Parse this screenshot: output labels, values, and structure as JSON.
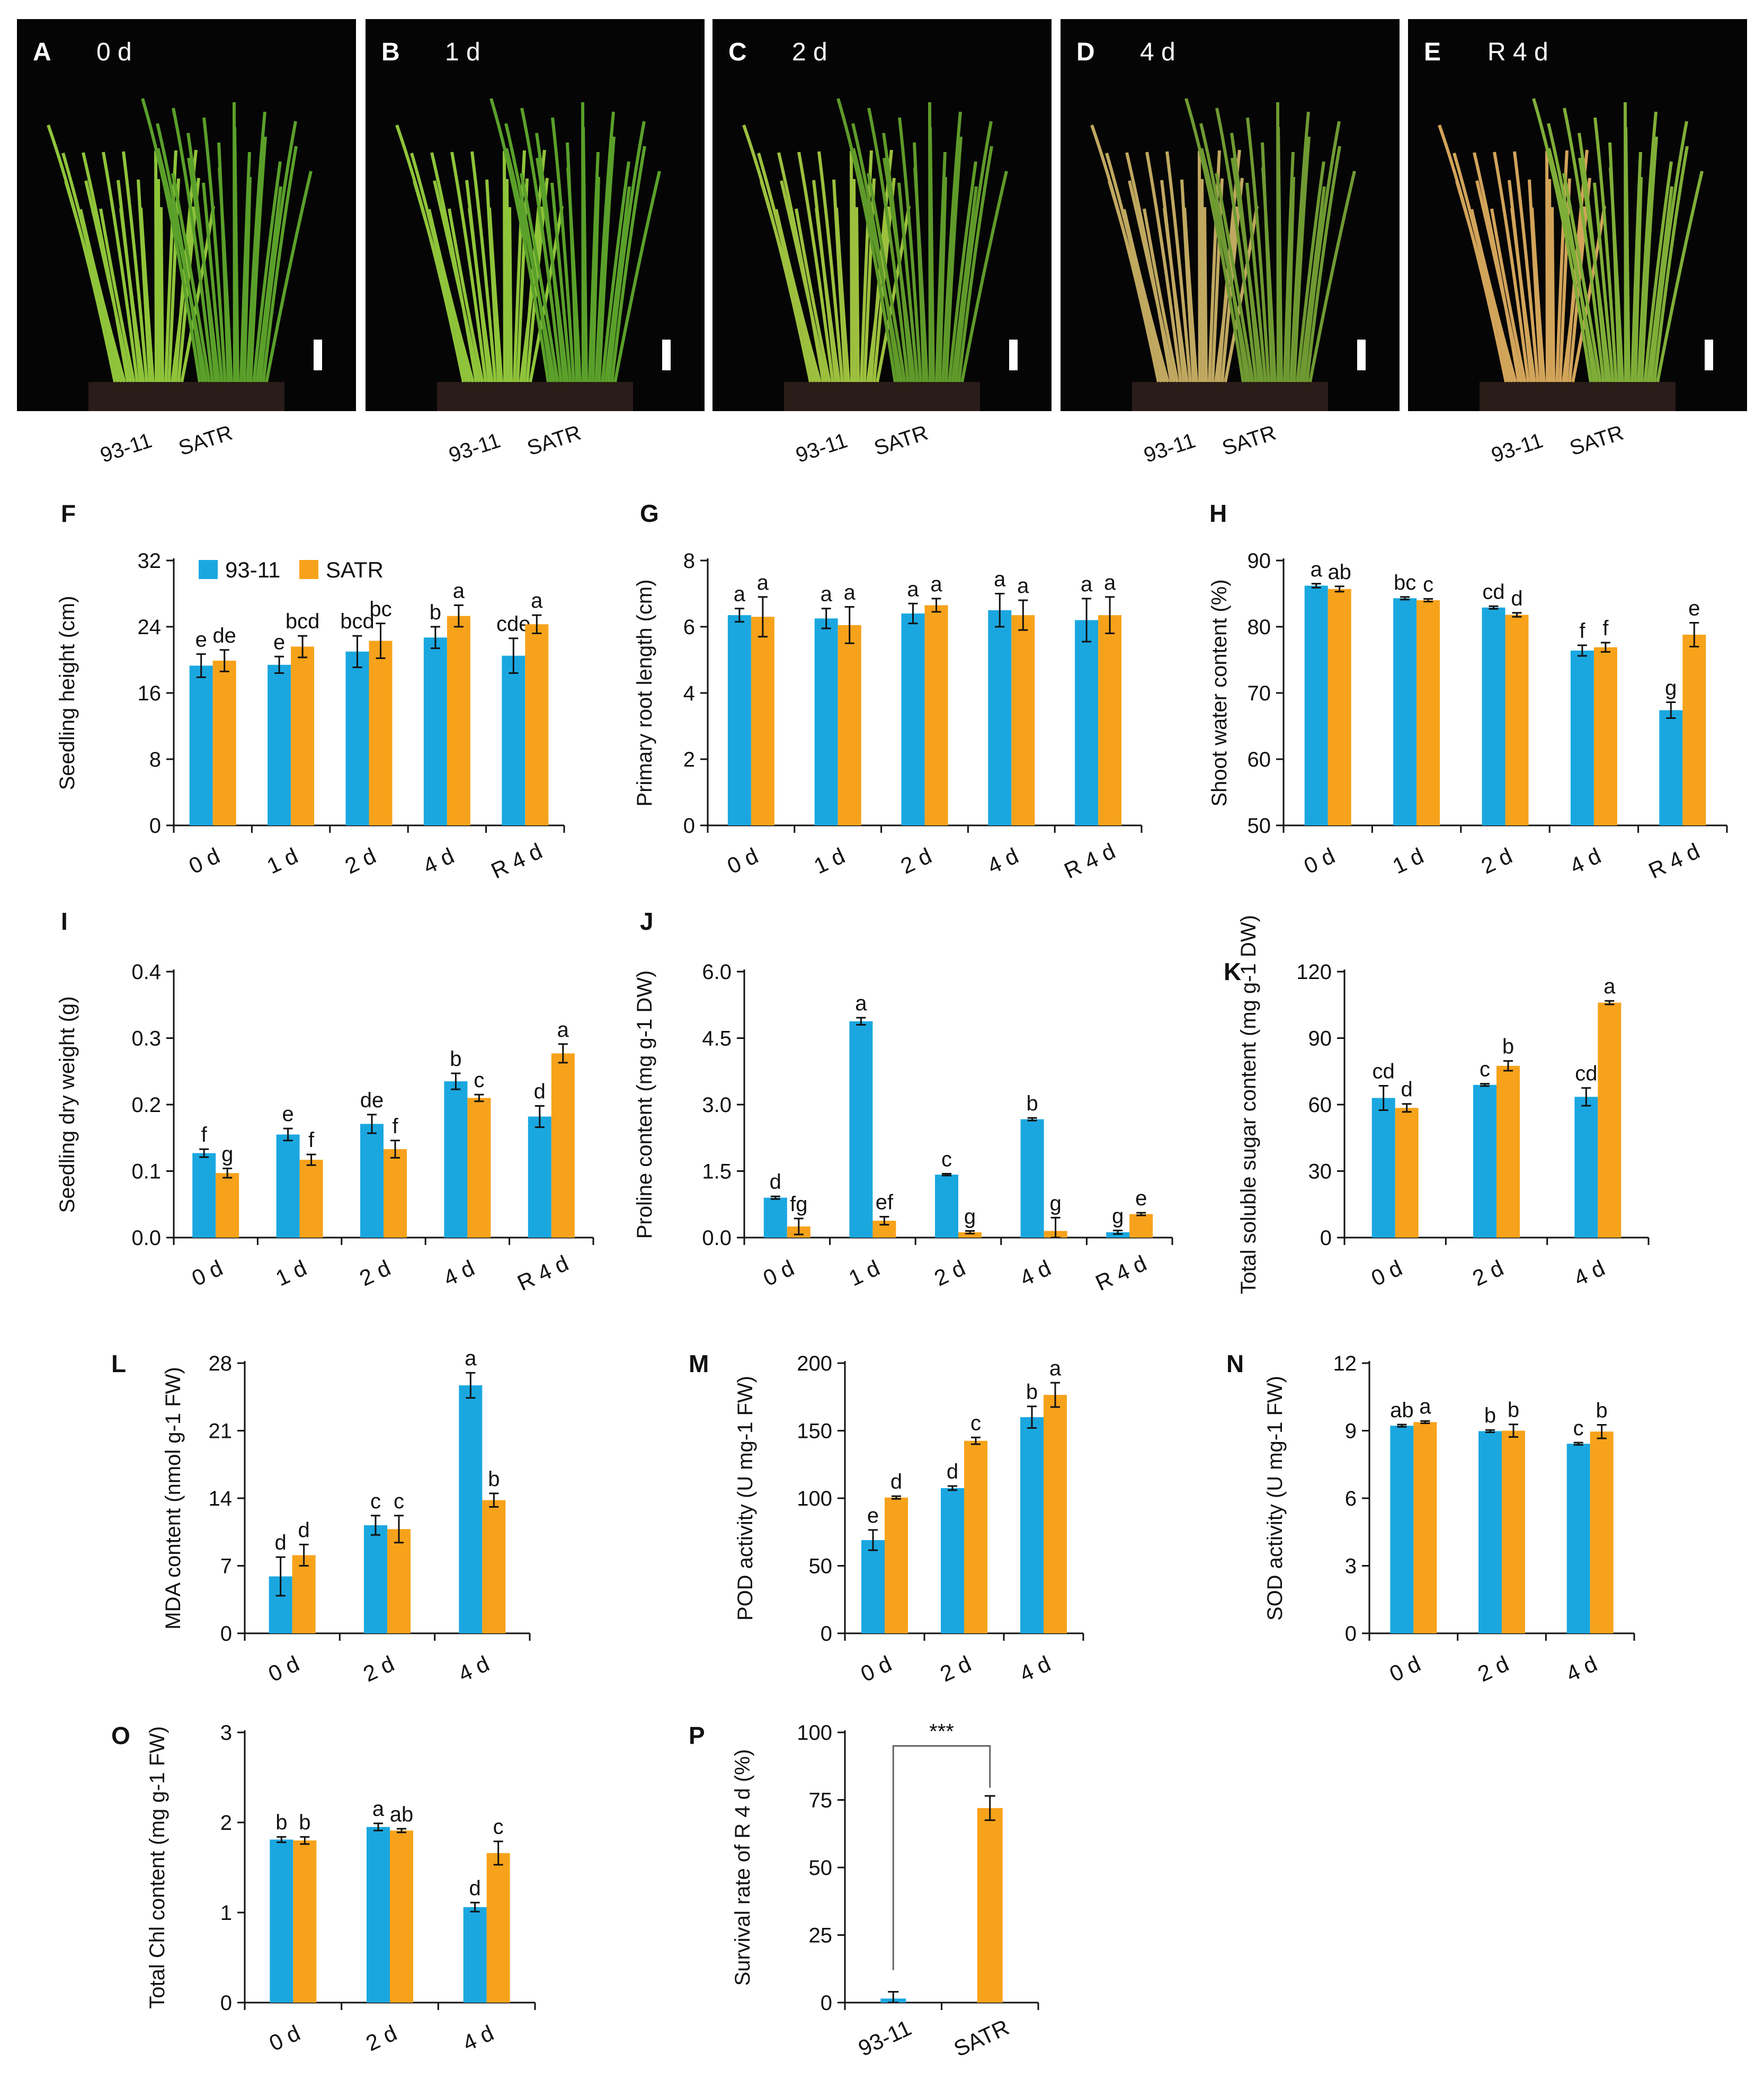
{
  "colors": {
    "c1": "#1AA7E0",
    "c2": "#F7A21B",
    "axis": "#111111",
    "photo_bg": "#050505"
  },
  "legend": [
    "93-11",
    "SATR"
  ],
  "photos": [
    {
      "label": "A",
      "time": "0 d",
      "left": "93-11",
      "right": "SATR",
      "stage": "healthy"
    },
    {
      "label": "B",
      "time": "1 d",
      "left": "93-11",
      "right": "SATR",
      "stage": "healthy"
    },
    {
      "label": "C",
      "time": "2 d",
      "left": "93-11",
      "right": "SATR",
      "stage": "mild"
    },
    {
      "label": "D",
      "time": "4 d",
      "left": "93-11",
      "right": "SATR",
      "stage": "wilting"
    },
    {
      "label": "E",
      "time": "R 4 d",
      "left": "93-11",
      "right": "SATR",
      "stage": "dead"
    }
  ],
  "chart_data": [
    {
      "id": "F",
      "label": "F",
      "type": "bar",
      "ylabel": "Seedling height (cm)",
      "ylim": [
        0,
        32
      ],
      "yticks": [
        "0",
        "8",
        "16",
        "24",
        "32"
      ],
      "legend": true,
      "categories": [
        "0 d",
        "1 d",
        "2 d",
        "4 d",
        "R 4 d"
      ],
      "series": [
        {
          "name": "93-11",
          "values": [
            19.3,
            19.4,
            21.0,
            22.7,
            20.5
          ],
          "errors": [
            1.4,
            1.0,
            1.9,
            1.3,
            2.1
          ],
          "letters": [
            "e",
            "e",
            "bcd",
            "b",
            "cde"
          ]
        },
        {
          "name": "SATR",
          "values": [
            19.9,
            21.6,
            22.3,
            25.3,
            24.3
          ],
          "errors": [
            1.3,
            1.3,
            2.1,
            1.3,
            1.1
          ],
          "letters": [
            "de",
            "bcd",
            "bc",
            "a",
            "a"
          ]
        }
      ]
    },
    {
      "id": "G",
      "label": "G",
      "type": "bar",
      "ylabel": "Primary root length (cm)",
      "ylim": [
        0,
        8
      ],
      "yticks": [
        "0",
        "2",
        "4",
        "6",
        "8"
      ],
      "categories": [
        "0 d",
        "1 d",
        "2 d",
        "4 d",
        "R 4 d"
      ],
      "series": [
        {
          "name": "93-11",
          "values": [
            6.35,
            6.25,
            6.4,
            6.5,
            6.2
          ],
          "errors": [
            0.2,
            0.3,
            0.3,
            0.5,
            0.65
          ],
          "letters": [
            "a",
            "a",
            "a",
            "a",
            "a"
          ]
        },
        {
          "name": "SATR",
          "values": [
            6.3,
            6.05,
            6.65,
            6.35,
            6.35
          ],
          "errors": [
            0.6,
            0.55,
            0.2,
            0.45,
            0.55
          ],
          "letters": [
            "a",
            "a",
            "a",
            "a",
            "a"
          ]
        }
      ]
    },
    {
      "id": "H",
      "label": "H",
      "type": "bar",
      "ylabel": "Shoot water content (%)",
      "ylim": [
        50,
        90
      ],
      "yticks": [
        "50",
        "60",
        "70",
        "80",
        "90"
      ],
      "categories": [
        "0 d",
        "1 d",
        "2 d",
        "4 d",
        "R 4 d"
      ],
      "series": [
        {
          "name": "93-11",
          "values": [
            86.2,
            84.3,
            82.9,
            76.4,
            67.4
          ],
          "errors": [
            0.3,
            0.2,
            0.2,
            0.8,
            1.2
          ],
          "letters": [
            "a",
            "bc",
            "cd",
            "f",
            "g"
          ]
        },
        {
          "name": "SATR",
          "values": [
            85.7,
            84.0,
            81.8,
            76.9,
            78.8
          ],
          "errors": [
            0.4,
            0.2,
            0.3,
            0.7,
            1.8
          ],
          "letters": [
            "ab",
            "c",
            "d",
            "f",
            "e"
          ]
        }
      ]
    },
    {
      "id": "I",
      "label": "I",
      "type": "bar",
      "ylabel": "Seedling dry weight (g)",
      "ylim": [
        0,
        0.4
      ],
      "yticks": [
        "0.0",
        "0.1",
        "0.2",
        "0.3",
        "0.4"
      ],
      "categories": [
        "0 d",
        "1 d",
        "2 d",
        "4 d",
        "R 4 d"
      ],
      "series": [
        {
          "name": "93-11",
          "values": [
            0.127,
            0.155,
            0.171,
            0.235,
            0.182
          ],
          "errors": [
            0.006,
            0.009,
            0.014,
            0.012,
            0.016
          ],
          "letters": [
            "f",
            "e",
            "de",
            "b",
            "d"
          ]
        },
        {
          "name": "SATR",
          "values": [
            0.097,
            0.117,
            0.133,
            0.21,
            0.277
          ],
          "errors": [
            0.007,
            0.008,
            0.013,
            0.005,
            0.014
          ],
          "letters": [
            "g",
            "f",
            "f",
            "c",
            "a"
          ]
        }
      ]
    },
    {
      "id": "J",
      "label": "J",
      "type": "bar",
      "ylabel": "Proline content (mg g-1 DW)",
      "ylim": [
        0,
        6
      ],
      "yticks": [
        "0.0",
        "1.5",
        "3.0",
        "4.5",
        "6.0"
      ],
      "categories": [
        "0 d",
        "1 d",
        "2 d",
        "4 d",
        "R 4 d"
      ],
      "series": [
        {
          "name": "93-11",
          "values": [
            0.9,
            4.88,
            1.42,
            2.67,
            0.12
          ],
          "errors": [
            0.03,
            0.08,
            0.02,
            0.03,
            0.04
          ],
          "letters": [
            "d",
            "a",
            "c",
            "b",
            "g"
          ]
        },
        {
          "name": "SATR",
          "values": [
            0.25,
            0.38,
            0.12,
            0.15,
            0.53
          ],
          "errors": [
            0.18,
            0.09,
            0.03,
            0.3,
            0.03
          ],
          "letters": [
            "fg",
            "ef",
            "g",
            "g",
            "e"
          ]
        }
      ]
    },
    {
      "id": "K",
      "label": "K",
      "type": "bar",
      "ylabel": "Total soluble sugar content (mg g-1 DW)",
      "ylim": [
        0,
        120
      ],
      "yticks": [
        "0",
        "30",
        "60",
        "90",
        "120"
      ],
      "categories": [
        "0 d",
        "2 d",
        "4 d"
      ],
      "series": [
        {
          "name": "93-11",
          "values": [
            63.0,
            68.9,
            63.5
          ],
          "errors": [
            5.5,
            0.5,
            4.0
          ],
          "letters": [
            "cd",
            "c",
            "cd"
          ]
        },
        {
          "name": "SATR",
          "values": [
            58.5,
            77.5,
            106.0
          ],
          "errors": [
            1.8,
            2.2,
            0.8
          ],
          "letters": [
            "d",
            "b",
            "a"
          ]
        }
      ]
    },
    {
      "id": "L",
      "label": "L",
      "type": "bar",
      "ylabel": "MDA content (nmol g-1 FW)",
      "ylim": [
        0,
        28
      ],
      "yticks": [
        "0",
        "7",
        "14",
        "21",
        "28"
      ],
      "categories": [
        "0 d",
        "2 d",
        "4 d"
      ],
      "series": [
        {
          "name": "93-11",
          "values": [
            5.9,
            11.2,
            25.7
          ],
          "errors": [
            2.0,
            1.0,
            1.3
          ],
          "letters": [
            "d",
            "c",
            "a"
          ]
        },
        {
          "name": "SATR",
          "values": [
            8.1,
            10.8,
            13.8
          ],
          "errors": [
            1.1,
            1.4,
            0.7
          ],
          "letters": [
            "d",
            "c",
            "b"
          ]
        }
      ]
    },
    {
      "id": "M",
      "label": "M",
      "type": "bar",
      "ylabel": "POD activity (U mg-1 FW)",
      "ylim": [
        0,
        200
      ],
      "yticks": [
        "0",
        "50",
        "100",
        "150",
        "200"
      ],
      "categories": [
        "0 d",
        "2 d",
        "4 d"
      ],
      "series": [
        {
          "name": "93-11",
          "values": [
            69.0,
            107.5,
            160.0
          ],
          "errors": [
            7.5,
            1.5,
            8.0
          ],
          "letters": [
            "e",
            "d",
            "b"
          ]
        },
        {
          "name": "SATR",
          "values": [
            100.5,
            142.5,
            176.5
          ],
          "errors": [
            1.0,
            2.5,
            9.0
          ],
          "letters": [
            "d",
            "c",
            "a"
          ]
        }
      ]
    },
    {
      "id": "N",
      "label": "N",
      "type": "bar",
      "ylabel": "SOD activity (U mg-1 FW)",
      "ylim": [
        0,
        12
      ],
      "yticks": [
        "0",
        "3",
        "6",
        "9",
        "12"
      ],
      "categories": [
        "0 d",
        "2 d",
        "4 d"
      ],
      "series": [
        {
          "name": "93-11",
          "values": [
            9.22,
            8.98,
            8.42
          ],
          "errors": [
            0.05,
            0.05,
            0.05
          ],
          "letters": [
            "ab",
            "b",
            "c"
          ]
        },
        {
          "name": "SATR",
          "values": [
            9.38,
            9.0,
            8.96
          ],
          "errors": [
            0.05,
            0.28,
            0.3
          ],
          "letters": [
            "a",
            "b",
            "b"
          ]
        }
      ]
    },
    {
      "id": "O",
      "label": "O",
      "type": "bar",
      "ylabel": "Total Chl content (mg g-1 FW)",
      "ylim": [
        0,
        3
      ],
      "yticks": [
        "0",
        "1",
        "2",
        "3"
      ],
      "categories": [
        "0 d",
        "2 d",
        "4 d"
      ],
      "series": [
        {
          "name": "93-11",
          "values": [
            1.81,
            1.95,
            1.06
          ],
          "errors": [
            0.03,
            0.04,
            0.05
          ],
          "letters": [
            "b",
            "a",
            "d"
          ]
        },
        {
          "name": "SATR",
          "values": [
            1.8,
            1.91,
            1.66
          ],
          "errors": [
            0.04,
            0.02,
            0.13
          ],
          "letters": [
            "b",
            "ab",
            "c"
          ]
        }
      ]
    },
    {
      "id": "P",
      "label": "P",
      "type": "bar",
      "ylabel": "Survival rate of R 4 d (%)",
      "ylim": [
        0,
        100
      ],
      "yticks": [
        "0",
        "25",
        "50",
        "75",
        "100"
      ],
      "categories": [
        "93-11",
        "SATR"
      ],
      "bar_colors": [
        "#1AA7E0",
        "#F7A21B"
      ],
      "values": [
        1.5,
        72.0
      ],
      "errors": [
        2.5,
        4.5
      ],
      "significance": "***"
    }
  ]
}
